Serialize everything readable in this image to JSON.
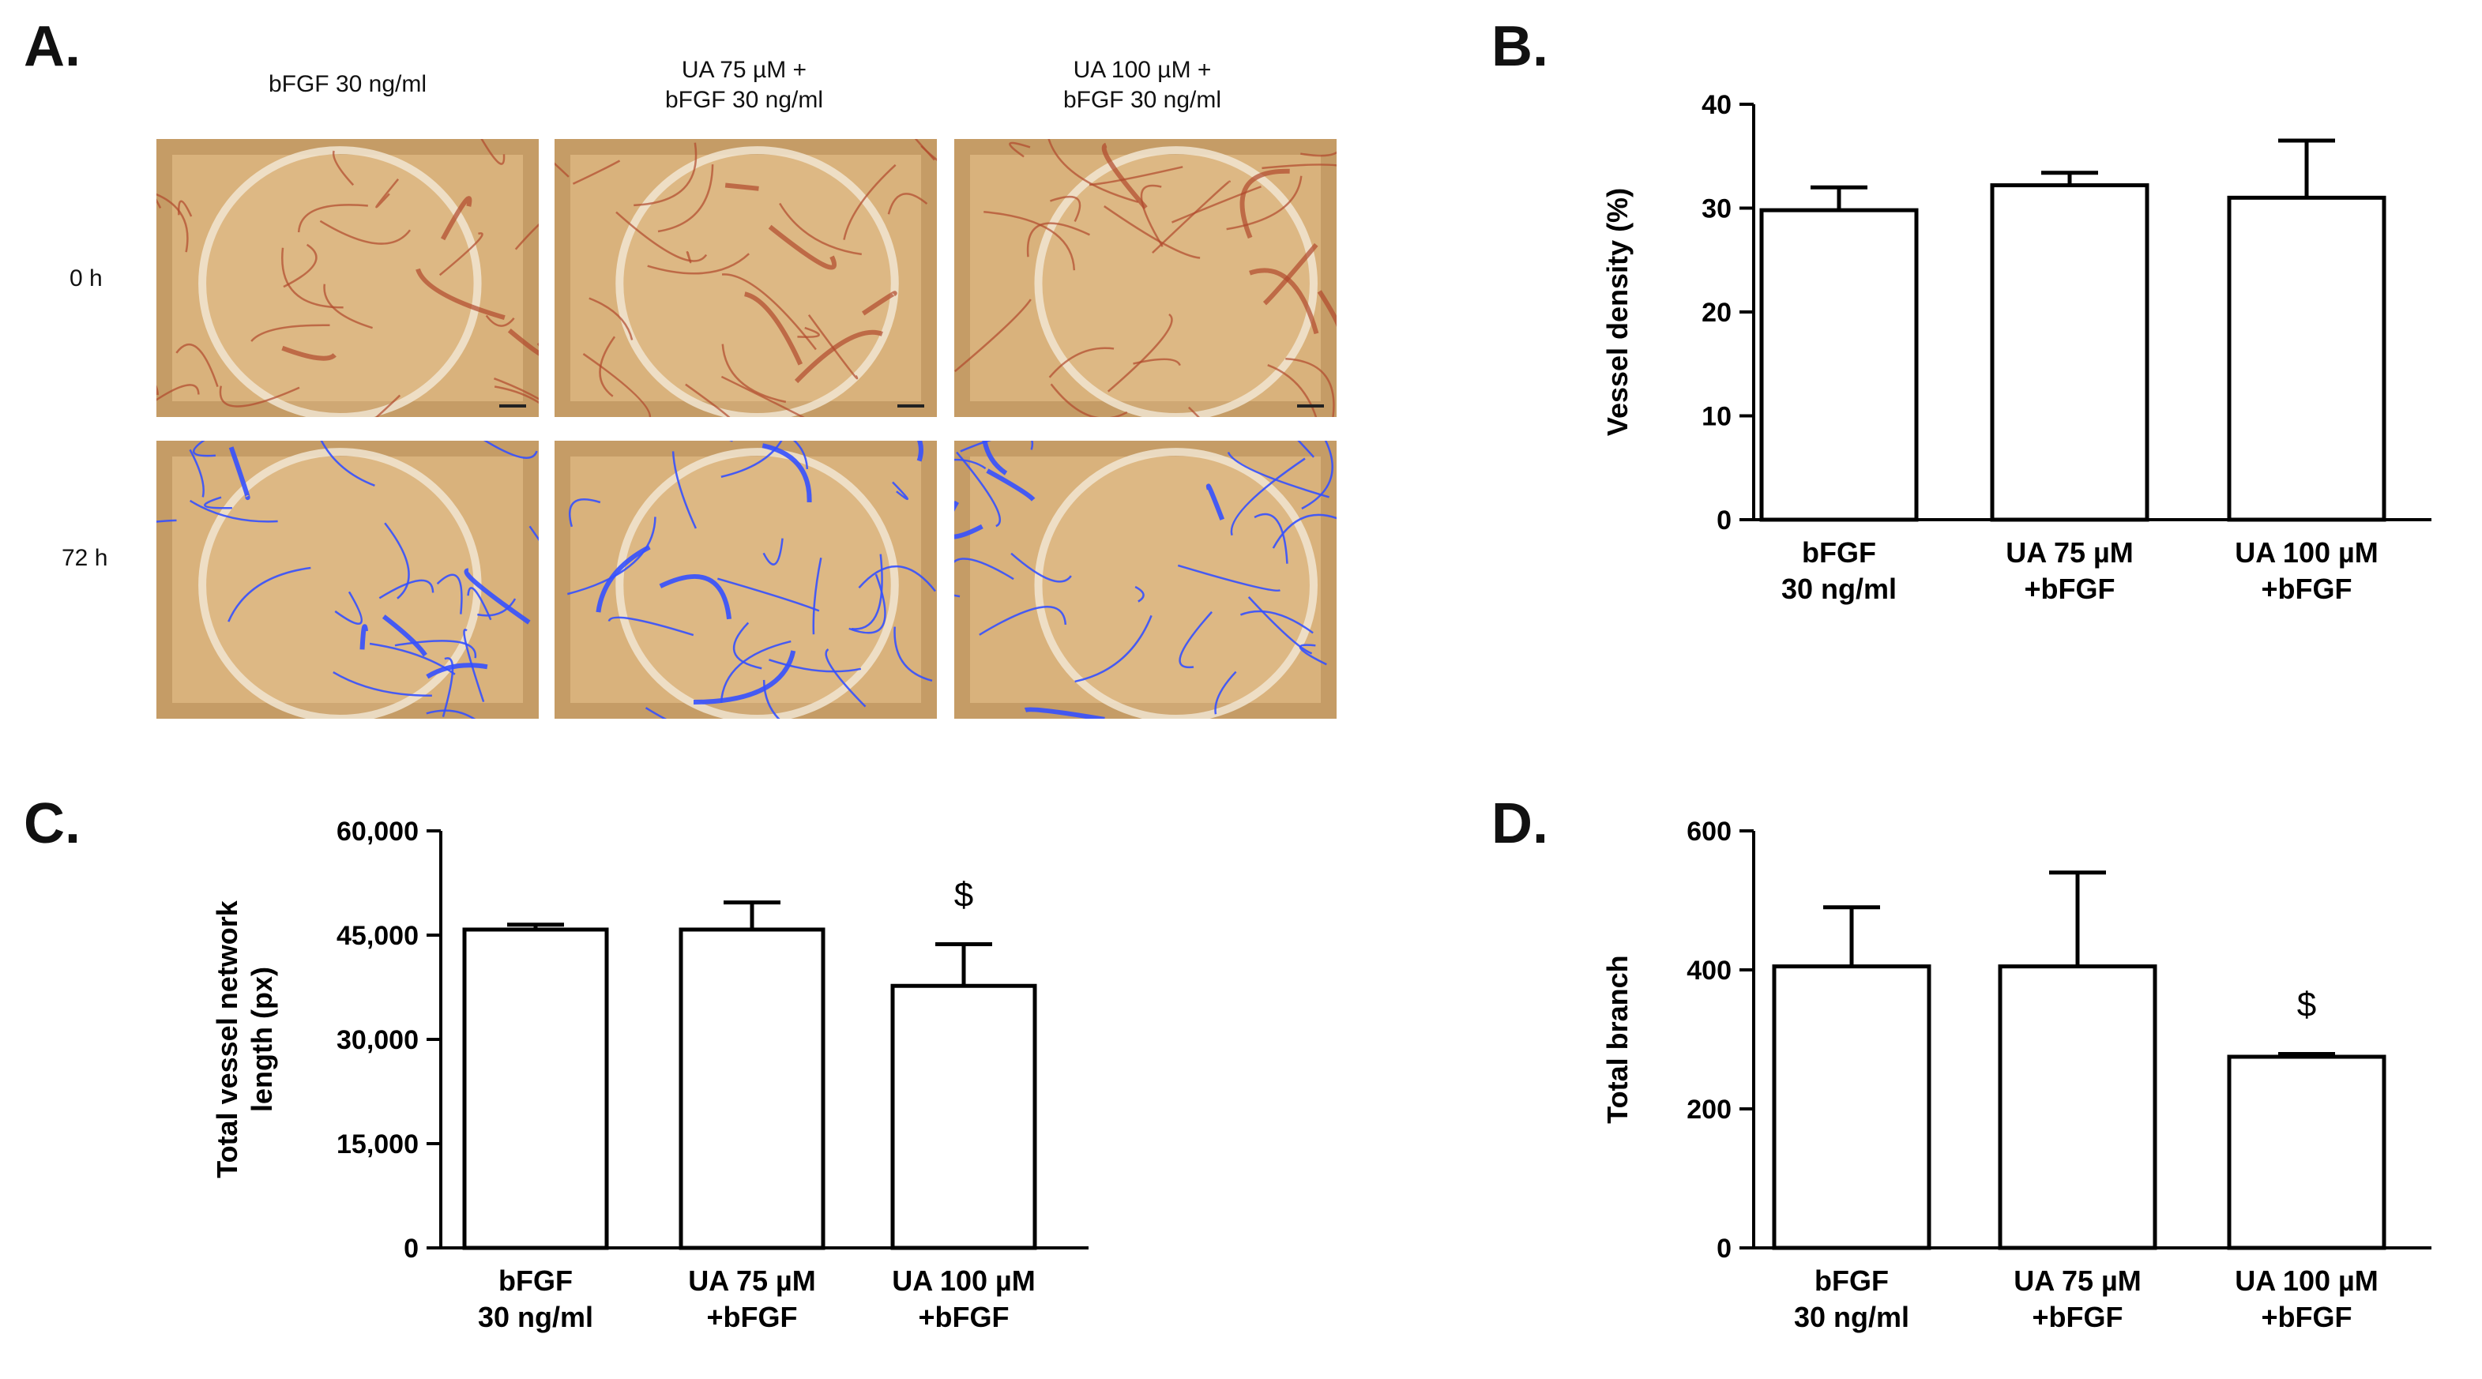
{
  "panels": {
    "A": {
      "letter": "A.",
      "columns": [
        "bFGF 30 ng/ml",
        "UA 75 µM +\nbFGF 30 ng/ml",
        "UA 100 µM +\nbFGF 30 ng/ml"
      ],
      "rows": [
        "0 h",
        "72 h"
      ],
      "colors": {
        "membrane": "#d9b27c",
        "vessel": "#b0482c",
        "overlay": "#3450ff"
      }
    },
    "B": {
      "letter": "B."
    },
    "C": {
      "letter": "C."
    },
    "D": {
      "letter": "D."
    }
  },
  "chart_data": [
    {
      "panel": "B",
      "type": "bar",
      "categories": [
        "bFGF\n30 ng/ml",
        "UA 75 µM\n+bFGF",
        "UA 100 µM\n+bFGF"
      ],
      "values": [
        29.8,
        32.2,
        31.0
      ],
      "errors": [
        2.2,
        1.2,
        5.5
      ],
      "annotations": [
        "",
        "",
        ""
      ],
      "ylabel": "Vessel density (%)",
      "ylim": [
        0,
        40
      ],
      "yticks": [
        0,
        10,
        20,
        30,
        40
      ],
      "ytick_labels": [
        "0",
        "10",
        "20",
        "30",
        "40"
      ]
    },
    {
      "panel": "C",
      "type": "bar",
      "categories": [
        "bFGF\n30 ng/ml",
        "UA 75 µM\n+bFGF",
        "UA 100 µM\n+bFGF"
      ],
      "values": [
        45800,
        45800,
        37700
      ],
      "errors": [
        700,
        3900,
        6000
      ],
      "annotations": [
        "",
        "",
        "$"
      ],
      "ylabel": "Total vessel network\nlength (px)",
      "ylim": [
        0,
        60000
      ],
      "yticks": [
        0,
        15000,
        30000,
        45000,
        60000
      ],
      "ytick_labels": [
        "0",
        "15,000",
        "30,000",
        "45,000",
        "60,000"
      ]
    },
    {
      "panel": "D",
      "type": "bar",
      "categories": [
        "bFGF\n30 ng/ml",
        "UA 75 µM\n+bFGF",
        "UA 100 µM\n+bFGF"
      ],
      "values": [
        405,
        405,
        275
      ],
      "errors": [
        85,
        135,
        4
      ],
      "annotations": [
        "",
        "",
        "$"
      ],
      "ylabel": "Total branch",
      "ylim": [
        0,
        600
      ],
      "yticks": [
        0,
        200,
        400,
        600
      ],
      "ytick_labels": [
        "0",
        "200",
        "400",
        "600"
      ]
    }
  ]
}
